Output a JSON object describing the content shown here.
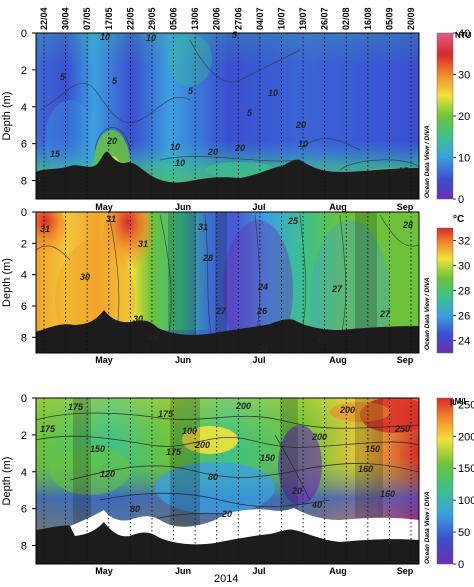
{
  "sample_dates": [
    "22/04",
    "30/04",
    "07/05",
    "17/05",
    "22/05",
    "29/05",
    "05/06",
    "13/06",
    "20/06",
    "27/06",
    "04/07",
    "10/07",
    "19/07",
    "26/07",
    "02/08",
    "16/08",
    "05/09",
    "20/09"
  ],
  "year_label": "2014",
  "watermark": "Ocean Data View / DIVA",
  "chart_data": [
    {
      "type": "heatmap",
      "panel": "turbidity",
      "ylabel": "Depth (m)",
      "ylim": [
        9,
        0
      ],
      "yticks": [
        "0",
        "2",
        "4",
        "6",
        "8"
      ],
      "month_ticks": [
        "May",
        "Jun",
        "Jul",
        "Aug",
        "Sep"
      ],
      "colorbar": {
        "unit": "NTU",
        "min": 0,
        "max": 40,
        "ticks": [
          "0",
          "10",
          "20",
          "30",
          "40"
        ]
      },
      "contour_labels": [
        "10",
        "10",
        "5",
        "5",
        "5",
        "5",
        "5",
        "10",
        "10",
        "20",
        "20",
        "10",
        "20",
        "10",
        "15",
        "15",
        "20"
      ],
      "colorscale": [
        "#6a2fb0",
        "#3a4fd0",
        "#3ba0e0",
        "#3cc18c",
        "#6cc23a",
        "#f2e23a",
        "#f28a2a",
        "#d9282a",
        "#e05a8a"
      ]
    },
    {
      "type": "heatmap",
      "panel": "temperature",
      "ylabel": "Depth (m)",
      "ylim": [
        9,
        0
      ],
      "yticks": [
        "0",
        "2",
        "4",
        "6",
        "8"
      ],
      "month_ticks": [
        "May",
        "Jun",
        "Jul",
        "Aug",
        "Sep"
      ],
      "colorbar": {
        "unit": "°C",
        "min": 23,
        "max": 33,
        "ticks": [
          "24",
          "26",
          "28",
          "30",
          "32"
        ]
      },
      "contour_labels": [
        "31",
        "31",
        "30",
        "29",
        "30",
        "28",
        "27",
        "26",
        "25",
        "24",
        "27",
        "27",
        "28",
        "26",
        "24",
        "31",
        "31"
      ],
      "colorscale": [
        "#6a2fb0",
        "#3a4fd0",
        "#3ba0e0",
        "#3cc18c",
        "#6cc23a",
        "#f2e23a",
        "#f28a2a",
        "#d9282a"
      ]
    },
    {
      "type": "heatmap",
      "panel": "concentration",
      "ylabel": "Depth (m)",
      "ylim": [
        9,
        0
      ],
      "yticks": [
        "0",
        "2",
        "4",
        "6",
        "8"
      ],
      "month_ticks": [
        "May",
        "Jun",
        "Jul",
        "Aug",
        "Sep"
      ],
      "xlabel": "2014",
      "colorbar": {
        "unit": "µM/l",
        "min": 0,
        "max": 260,
        "ticks": [
          "0",
          "50",
          "100",
          "150",
          "200",
          "250"
        ]
      },
      "contour_labels": [
        "175",
        "175",
        "175",
        "100",
        "175",
        "200",
        "200",
        "150",
        "120",
        "80",
        "150",
        "200",
        "160",
        "250",
        "160",
        "20",
        "40",
        "20",
        "80",
        "200",
        "150"
      ],
      "colorscale": [
        "#6a2fb0",
        "#3a4fd0",
        "#3ba0e0",
        "#3cc18c",
        "#6cc23a",
        "#f2e23a",
        "#f28a2a",
        "#d9282a"
      ]
    }
  ]
}
